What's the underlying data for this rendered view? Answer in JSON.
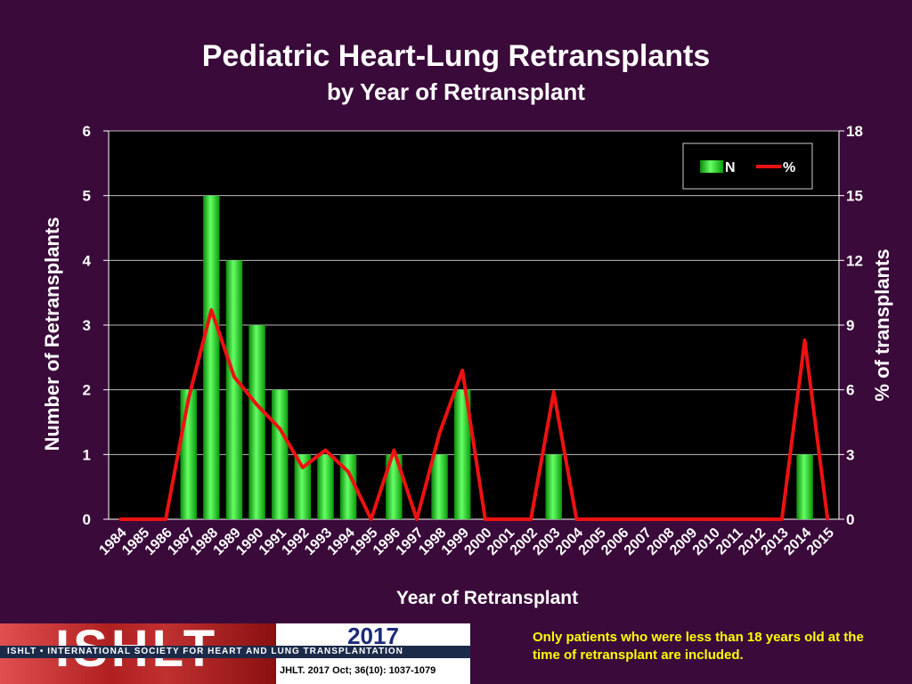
{
  "chart_data": {
    "type": "bar",
    "title": "Pediatric Heart-Lung Retransplants",
    "subtitle": "by Year of Retransplant",
    "xlabel": "Year of Retransplant",
    "ylabel": "Number of Retransplants",
    "y2label": "% of transplants",
    "ylim": [
      0,
      6
    ],
    "y2lim": [
      0,
      18
    ],
    "yticks": [
      "0",
      "1",
      "2",
      "3",
      "4",
      "5",
      "6"
    ],
    "y2ticks": [
      "0",
      "3",
      "6",
      "9",
      "12",
      "15",
      "18"
    ],
    "grid": true,
    "legend_position": "top-right",
    "categories": [
      "1984",
      "1985",
      "1986",
      "1987",
      "1988",
      "1989",
      "1990",
      "1991",
      "1992",
      "1993",
      "1994",
      "1995",
      "1996",
      "1997",
      "1998",
      "1999",
      "2000",
      "2001",
      "2002",
      "2003",
      "2004",
      "2005",
      "2006",
      "2007",
      "2008",
      "2009",
      "2010",
      "2011",
      "2012",
      "2013",
      "2014",
      "2015"
    ],
    "series": [
      {
        "name": "N",
        "type": "bar",
        "axis": "left",
        "color": "#22dd22",
        "values": [
          0,
          0,
          0,
          2,
          5,
          4,
          3,
          2,
          1,
          1,
          1,
          0,
          1,
          0,
          1,
          2,
          0,
          0,
          0,
          1,
          0,
          0,
          0,
          0,
          0,
          0,
          0,
          0,
          0,
          0,
          1,
          0
        ]
      },
      {
        "name": "%",
        "type": "line",
        "axis": "right",
        "color": "#ee1111",
        "values": [
          0,
          0,
          0,
          5.6,
          9.7,
          6.6,
          5.3,
          4.2,
          2.4,
          3.2,
          2.2,
          0,
          3.2,
          0,
          4,
          6.9,
          0,
          0,
          0,
          5.9,
          0,
          0,
          0,
          0,
          0,
          0,
          0,
          0,
          0,
          0,
          8.3,
          0
        ]
      }
    ]
  },
  "footer": {
    "logo_text": "ISHLT",
    "logo_band": "ISHLT • INTERNATIONAL SOCIETY FOR HEART AND LUNG TRANSPLANTATION",
    "year": "2017",
    "reference": "JHLT. 2017 Oct; 36(10): 1037-1079",
    "note": "Only patients who were less than 18 years old at the time of retransplant are included."
  }
}
